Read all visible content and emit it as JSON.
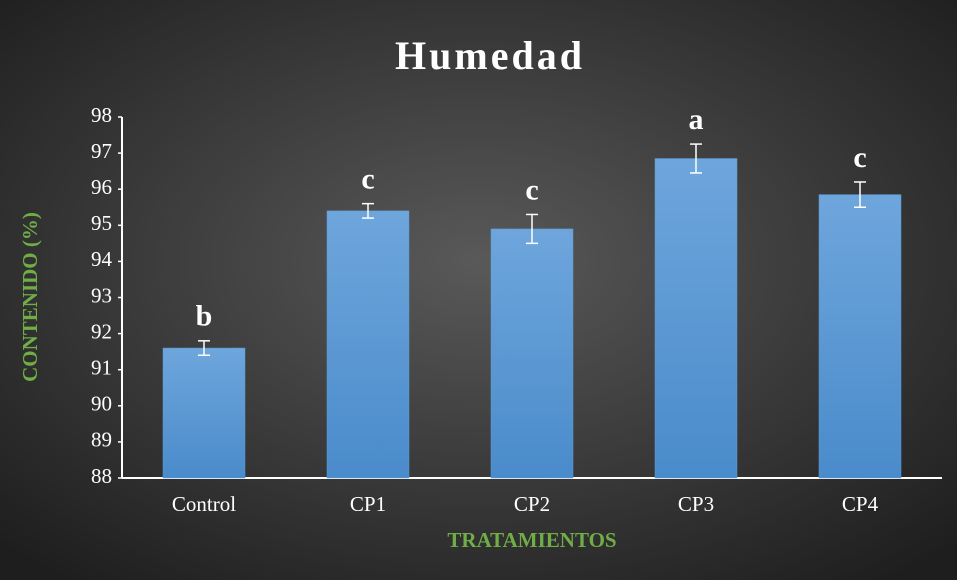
{
  "chart_data": {
    "type": "bar",
    "title": "Humedad",
    "x_label": "TRATAMIENTOS",
    "y_label": "CONTENIDO (%)",
    "categories": [
      "Control",
      "CP1",
      "CP2",
      "CP3",
      "CP4"
    ],
    "values": [
      91.6,
      95.4,
      94.9,
      96.85,
      95.85
    ],
    "errors": [
      0.2,
      0.2,
      0.4,
      0.4,
      0.35
    ],
    "letters": [
      "b",
      "c",
      "c",
      "a",
      "c"
    ],
    "color": "#5b9bd5",
    "ylim": [
      88,
      98
    ],
    "yticks": [
      88,
      89,
      90,
      91,
      92,
      93,
      94,
      95,
      96,
      97,
      98
    ],
    "grid": false
  }
}
